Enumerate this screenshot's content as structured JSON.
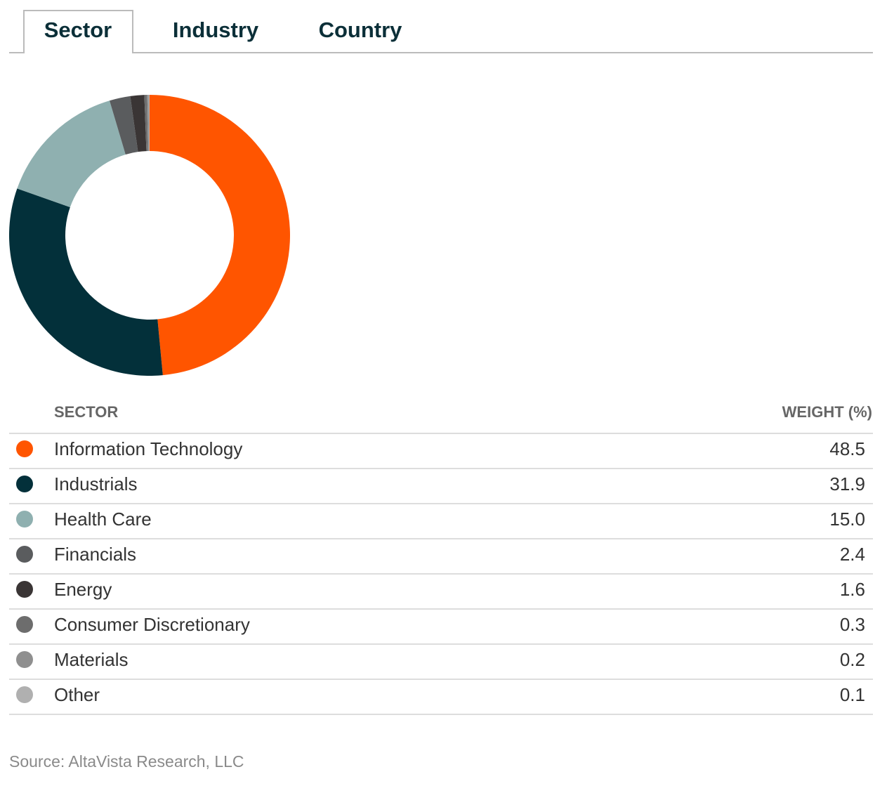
{
  "tabs": [
    "Sector",
    "Industry",
    "Country"
  ],
  "chart_data": {
    "type": "pie",
    "donut": true,
    "categories": [
      "Information Technology",
      "Industrials",
      "Health Care",
      "Financials",
      "Energy",
      "Consumer Discretionary",
      "Materials",
      "Other"
    ],
    "values": [
      48.5,
      31.9,
      15.0,
      2.4,
      1.6,
      0.3,
      0.2,
      0.1
    ],
    "value_labels": [
      "48.5",
      "31.9",
      "15.0",
      "2.4",
      "1.6",
      "0.3",
      "0.2",
      "0.1"
    ],
    "colors": [
      "#ff5500",
      "#03303a",
      "#8fb0b0",
      "#5a5c5e",
      "#3a3535",
      "#6d6d6d",
      "#8f8f8f",
      "#b0b0b0"
    ]
  },
  "table": {
    "headers": [
      "SECTOR",
      "WEIGHT (%)"
    ]
  },
  "source": "Source: AltaVista Research, LLC"
}
